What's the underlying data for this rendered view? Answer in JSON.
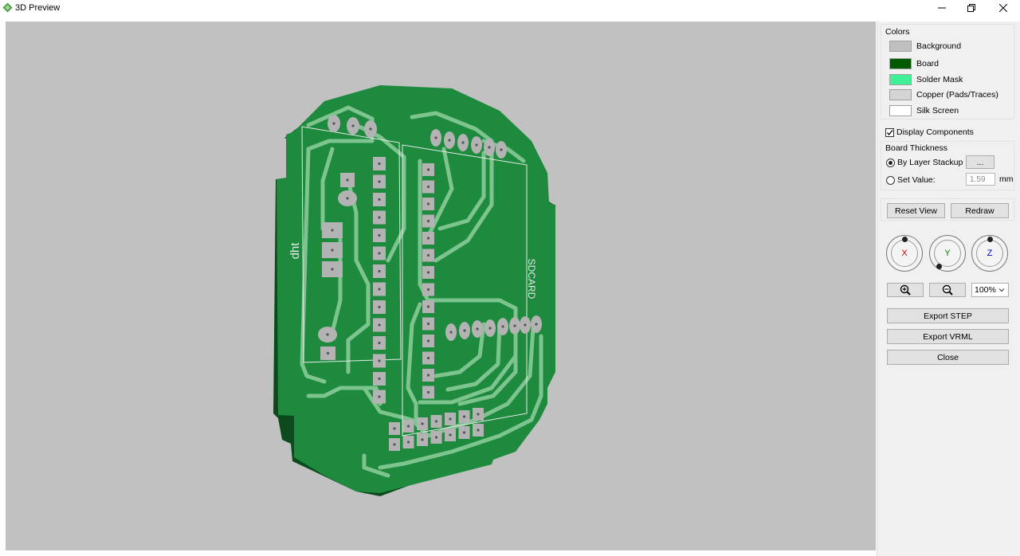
{
  "window": {
    "title": "3D Preview"
  },
  "colors": {
    "title": "Colors",
    "items": [
      {
        "label": "Background",
        "color": "#c0c0c0"
      },
      {
        "label": "Board",
        "color": "#005a00"
      },
      {
        "label": "Solder Mask",
        "color": "#3ff096"
      },
      {
        "label": "Copper (Pads/Traces)",
        "color": "#d4d4d4"
      },
      {
        "label": "Silk Screen",
        "color": "#ffffff"
      }
    ]
  },
  "display_components": {
    "label": "Display Components",
    "checked": true
  },
  "thickness": {
    "title": "Board Thickness",
    "by_layer_label": "By Layer Stackup",
    "by_layer_button": "...",
    "set_value_label": "Set Value:",
    "value": "1.59",
    "unit": "mm"
  },
  "view_buttons": {
    "reset": "Reset View",
    "redraw": "Redraw"
  },
  "axes": {
    "x": "X",
    "y": "Y",
    "z": "Z",
    "x_color": "#d00000",
    "y_color": "#008000",
    "z_color": "#0000c0"
  },
  "zoom": {
    "value": "100%"
  },
  "actions": {
    "export_step": "Export STEP",
    "export_vrml": "Export VRML",
    "close": "Close"
  },
  "board": {
    "label_dht": "dht",
    "label_sdcard": "SDCARD",
    "mask_color": "#1d8a3e",
    "edge_color": "#0b4a1c",
    "trace_color": "#7dc48e",
    "pad_color": "#b3b3b3",
    "silk_color": "#e8e8e8"
  }
}
